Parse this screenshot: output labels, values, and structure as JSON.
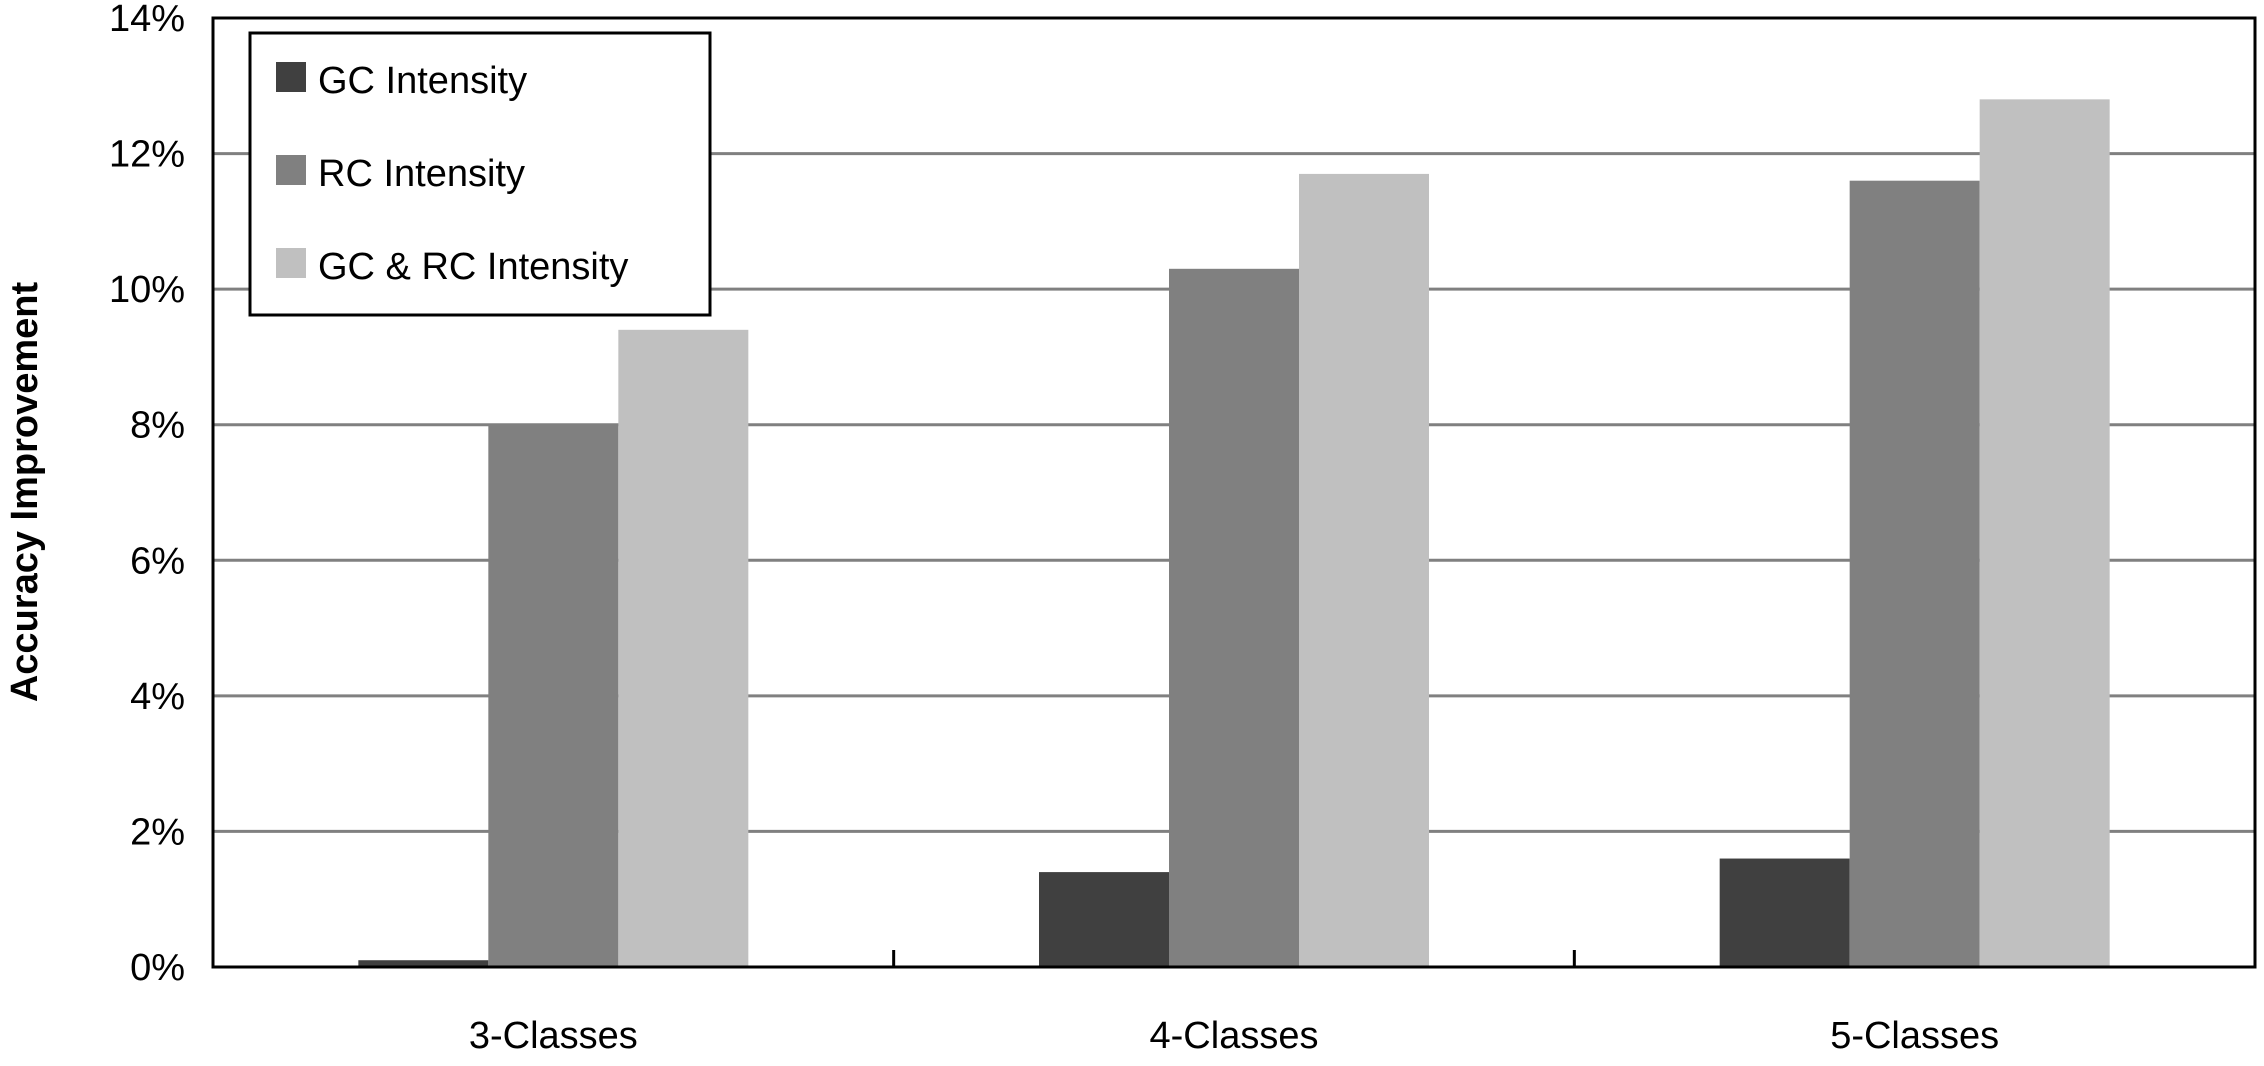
{
  "chart_data": {
    "type": "bar",
    "categories": [
      "3-Classes",
      "4-Classes",
      "5-Classes"
    ],
    "series": [
      {
        "name": "GC Intensity",
        "values": [
          0.1,
          1.4,
          1.6
        ],
        "color": "#404040"
      },
      {
        "name": "RC Intensity",
        "values": [
          8.0,
          10.3,
          11.6
        ],
        "color": "#808080"
      },
      {
        "name": "GC & RC Intensity",
        "values": [
          9.4,
          11.7,
          12.8
        ],
        "color": "#c0c0c0"
      }
    ],
    "title": "",
    "xlabel": "",
    "ylabel": "Accuracy Improvement",
    "ylim": [
      0,
      14
    ],
    "ytick_labels": [
      "0%",
      "2%",
      "4%",
      "6%",
      "8%",
      "10%",
      "12%",
      "14%"
    ],
    "grid": true,
    "legend_position": "top-left",
    "gridline_color": "#808080"
  }
}
